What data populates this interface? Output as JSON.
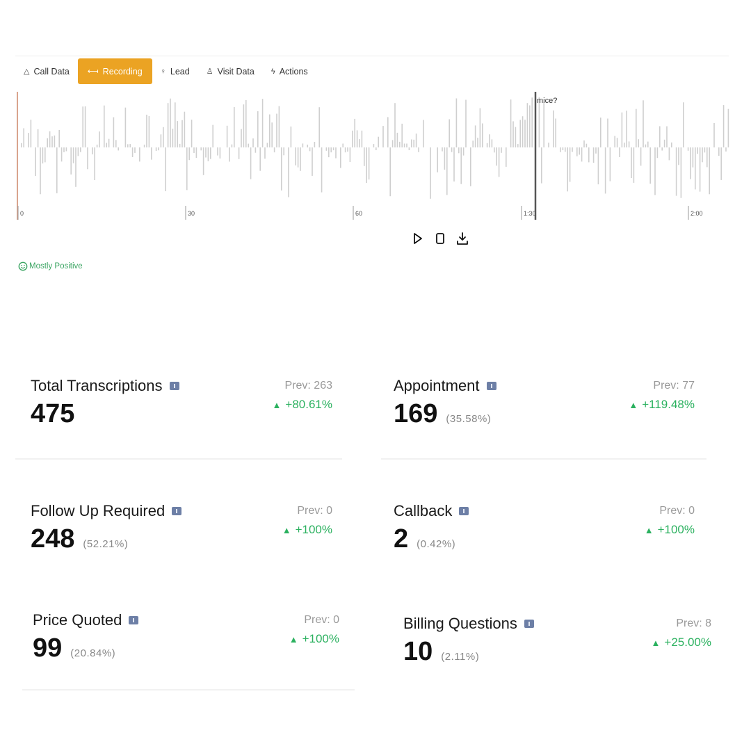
{
  "tabs": [
    {
      "label": "Call Data",
      "icon": "phone-icon"
    },
    {
      "label": "Recording",
      "icon": "waveform-icon",
      "active": true
    },
    {
      "label": "Lead",
      "icon": "lightbulb-icon"
    },
    {
      "label": "Visit Data",
      "icon": "user-icon"
    },
    {
      "label": "Actions",
      "icon": "bolt-icon"
    }
  ],
  "player": {
    "timeline_labels": [
      "0",
      "30",
      "60",
      "1:30",
      "2:00"
    ],
    "annotation": "mice?",
    "controls": [
      "play-icon",
      "stop-icon",
      "download-icon"
    ]
  },
  "sentiment": {
    "label": "Mostly Positive",
    "color": "#3ca563"
  },
  "colors": {
    "accent": "#eba323",
    "positive": "#2bb15f"
  },
  "metrics": [
    {
      "title": "Total Transcriptions",
      "value": "475",
      "pct": "",
      "prev": "Prev: 263",
      "change": "+80.61%"
    },
    {
      "title": "Appointment",
      "value": "169",
      "pct": "(35.58%)",
      "prev": "Prev: 77",
      "change": "+119.48%"
    },
    {
      "title": "Follow Up Required",
      "value": "248",
      "pct": "(52.21%)",
      "prev": "Prev: 0",
      "change": "+100%"
    },
    {
      "title": "Callback",
      "value": "2",
      "pct": "(0.42%)",
      "prev": "Prev: 0",
      "change": "+100%"
    },
    {
      "title": "Price Quoted",
      "value": "99",
      "pct": "(20.84%)",
      "prev": "Prev: 0",
      "change": "+100%"
    },
    {
      "title": "Billing Questions",
      "value": "10",
      "pct": "(2.11%)",
      "prev": "Prev: 8",
      "change": "+25.00%"
    }
  ]
}
